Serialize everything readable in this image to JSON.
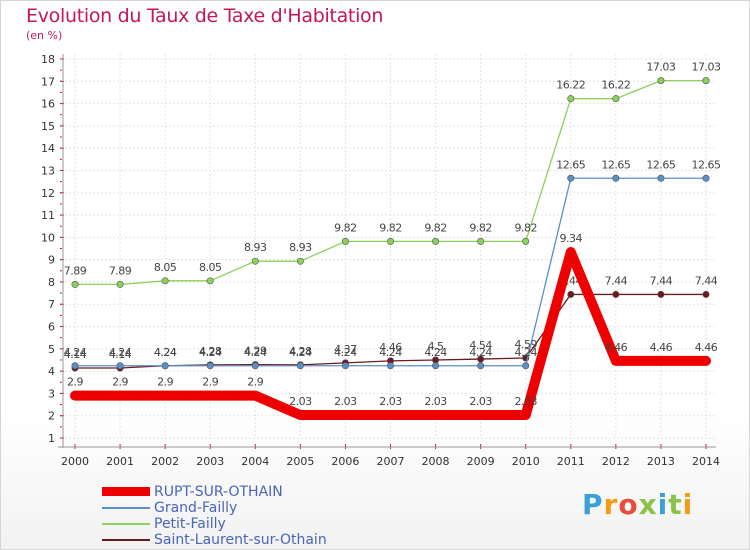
{
  "title": "Evolution du Taux de Taxe d'Habitation",
  "subtitle": "(en %)",
  "logo": "Proxiti",
  "chart_data": {
    "type": "line",
    "x": [
      2000,
      2001,
      2002,
      2003,
      2004,
      2005,
      2006,
      2007,
      2008,
      2009,
      2010,
      2011,
      2012,
      2013,
      2014
    ],
    "ylim": [
      1,
      18
    ],
    "yticks": [
      1,
      2,
      3,
      4,
      5,
      6,
      7,
      8,
      9,
      10,
      11,
      12,
      13,
      14,
      15,
      16,
      17,
      18
    ],
    "grid": true,
    "legend": "bottom-left",
    "series": [
      {
        "name": "Saint-Laurent-sur-Othain",
        "color": "#6b1a1f",
        "values": [
          4.14,
          4.14,
          4.24,
          4.28,
          4.29,
          4.28,
          4.37,
          4.46,
          4.5,
          4.54,
          4.59,
          7.44,
          7.44,
          7.44,
          7.44
        ],
        "labels": [
          "4.14",
          "4.14",
          "4.24",
          "4.28",
          "4.29",
          "4.28",
          "4.37",
          "4.46",
          "4.5",
          "4.54",
          "4.59",
          "7.44",
          "7.44",
          "7.44",
          "7.44"
        ]
      },
      {
        "name": "Grand-Failly",
        "color": "#5b8fc7",
        "values": [
          4.24,
          4.24,
          4.24,
          4.24,
          4.24,
          4.24,
          4.24,
          4.24,
          4.24,
          4.24,
          4.24,
          12.65,
          12.65,
          12.65,
          12.65
        ],
        "labels": [
          "4.24",
          "4.24",
          "4.24",
          "4.24",
          "4.24",
          "4.24",
          "4.24",
          "4.24",
          "4.24",
          "4.24",
          "4.24",
          "12.65",
          "12.65",
          "12.65",
          "12.65"
        ]
      },
      {
        "name": "Petit-Failly",
        "color": "#8bd05a",
        "values": [
          7.89,
          7.89,
          8.05,
          8.05,
          8.93,
          8.93,
          9.82,
          9.82,
          9.82,
          9.82,
          9.82,
          16.22,
          16.22,
          17.03,
          17.03
        ],
        "labels": [
          "7.89",
          "7.89",
          "8.05",
          "8.05",
          "8.93",
          "8.93",
          "9.82",
          "9.82",
          "9.82",
          "9.82",
          "9.82",
          "16.22",
          "16.22",
          "17.03",
          "17.03"
        ]
      },
      {
        "name": "RUPT-SUR-OTHAIN",
        "color": "#ee0000",
        "thick": true,
        "values": [
          2.9,
          2.9,
          2.9,
          2.9,
          2.9,
          2.03,
          2.03,
          2.03,
          2.03,
          2.03,
          2.03,
          9.34,
          4.46,
          4.46,
          4.46
        ],
        "labels": [
          "2.9",
          "2.9",
          "2.9",
          "2.9",
          "2.9",
          "2.03",
          "2.03",
          "2.03",
          "2.03",
          "2.03",
          "2.03",
          "9.34",
          "4.46",
          "4.46",
          "4.46"
        ]
      }
    ],
    "legend_order": [
      "RUPT-SUR-OTHAIN",
      "Grand-Failly",
      "Petit-Failly",
      "Saint-Laurent-sur-Othain"
    ]
  }
}
